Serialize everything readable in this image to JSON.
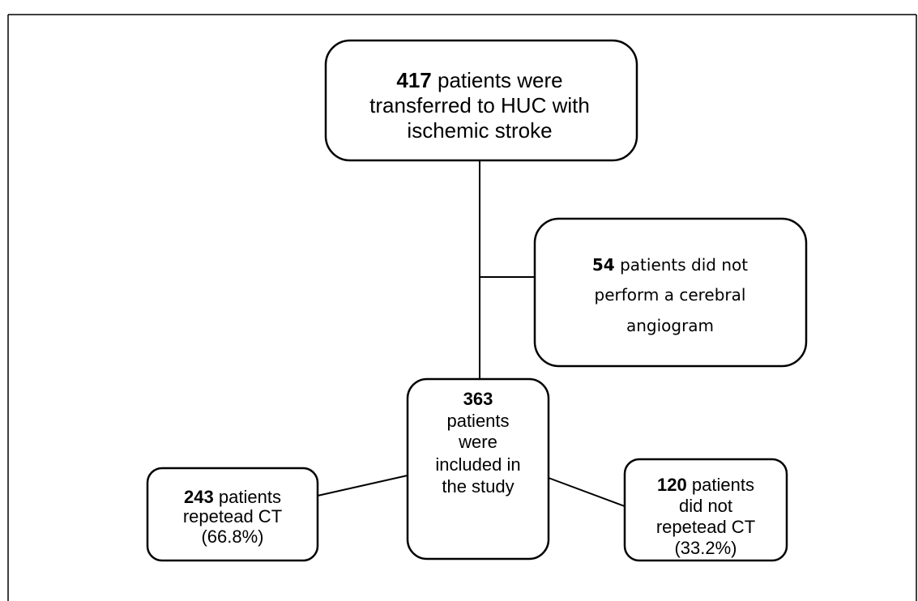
{
  "nodes": [
    {
      "number": "417",
      "lines": [
        "patients were",
        "transferred to HUC with",
        "ischemic stroke"
      ]
    },
    {
      "number": "54",
      "lines": [
        "patients did not",
        "perform a cerebral",
        "angiogram"
      ]
    },
    {
      "number": "363",
      "lines": [
        "patients",
        "were",
        "included in",
        "the study"
      ]
    },
    {
      "number": "243",
      "lines": [
        "patients",
        "repetead CT",
        "(66.8%)"
      ]
    },
    {
      "number": "120",
      "lines": [
        "patients",
        "did not",
        "repetead CT",
        "(33.2%)"
      ]
    }
  ]
}
